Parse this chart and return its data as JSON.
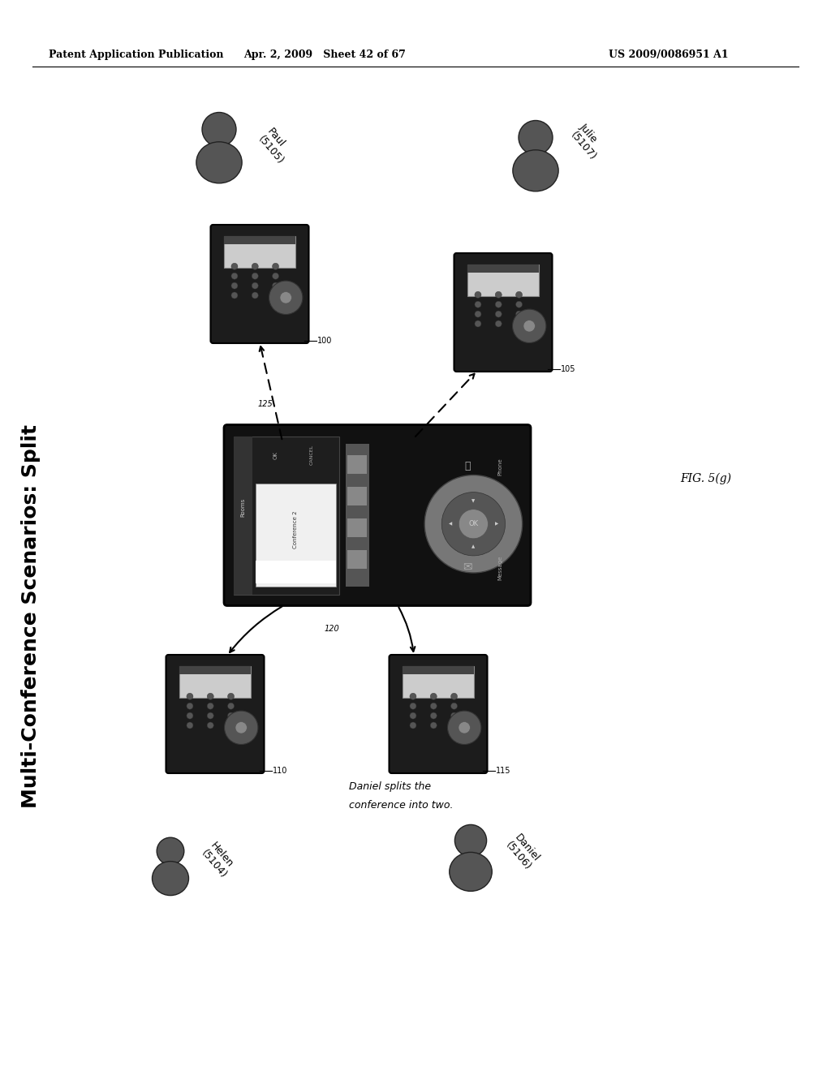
{
  "bg_color": "#ffffff",
  "header_left": "Patent Application Publication",
  "header_center": "Apr. 2, 2009   Sheet 42 of 67",
  "header_right": "US 2009/0086951 A1",
  "vertical_title": "Multi-Conference Scenarios: Split",
  "fig_label": "FIG. 5(g)",
  "caption_line1": "Daniel splits the",
  "caption_line2": "conference into two.",
  "phone_color": "#1a1a1a",
  "center_device_color": "#111111"
}
